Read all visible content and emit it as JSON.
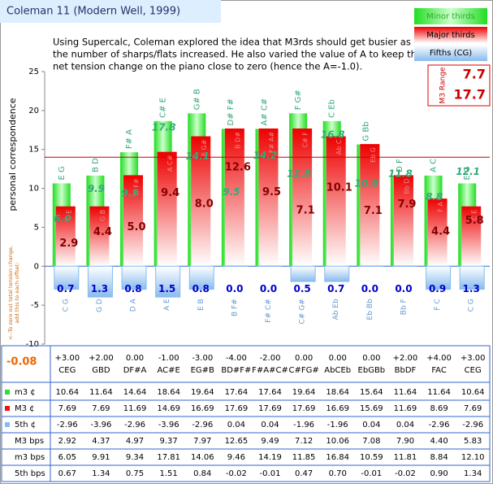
{
  "chart_data": {
    "type": "bar",
    "title": "Coleman 11 (Modern Well, 1999)",
    "description": [
      "Using Supercalc, Coleman explored the idea that M3rds should get busier as",
      "the number of sharps/flats increased. He also varied the value of A to keep the",
      "net tension change on the piano close to zero (hence the A=-1.0)."
    ],
    "y_label": "personal correspondence",
    "ylim": [
      -10,
      25
    ],
    "yticks": [
      -10,
      -5,
      0,
      5,
      10,
      15,
      20,
      25
    ],
    "hline": 14,
    "categories": [
      "CEG",
      "GBD",
      "DF#A",
      "AC#E",
      "EG#B",
      "BD#F#",
      "F#A#C#",
      "C#FG#",
      "AbCEb",
      "EbGBb",
      "BbDF",
      "FAC",
      "CEG"
    ],
    "offsets": {
      "values": [
        3,
        2,
        0,
        -1,
        -3,
        -4,
        -2,
        0,
        0,
        0,
        2,
        4,
        3
      ],
      "value_labels": [
        "+3.00",
        "+2.00",
        "0.00",
        "-1.00",
        "-3.00",
        "-4.00",
        "-2.00",
        "0.00",
        "0.00",
        "0.00",
        "+2.00",
        "+4.00",
        "+3.00"
      ]
    },
    "series": [
      {
        "name": "Minor thirds",
        "row_label": "m3 ¢",
        "color": "#33dd33",
        "values": [
          10.64,
          11.64,
          14.64,
          18.64,
          19.64,
          17.64,
          17.64,
          19.64,
          18.64,
          15.64,
          11.64,
          11.64,
          10.64
        ],
        "value_labels": [
          "10.64",
          "11.64",
          "14.64",
          "18.64",
          "19.64",
          "17.64",
          "17.64",
          "19.64",
          "18.64",
          "15.64",
          "11.64",
          "11.64",
          "10.64"
        ],
        "notes": [
          "E G",
          "B D",
          "F# A",
          "C# E",
          "G# B",
          "D# F#",
          "A# C#",
          "F G#",
          "C Eb",
          "G Bb",
          "D F",
          "A C",
          "E G"
        ]
      },
      {
        "name": "Major thirds",
        "row_label": "M3 ¢",
        "color": "#ee1111",
        "values": [
          7.69,
          7.69,
          11.69,
          14.69,
          16.69,
          17.69,
          17.69,
          17.69,
          16.69,
          15.69,
          11.69,
          8.69,
          7.69
        ],
        "value_labels": [
          "7.69",
          "7.69",
          "11.69",
          "14.69",
          "16.69",
          "17.69",
          "17.69",
          "17.69",
          "16.69",
          "15.69",
          "11.69",
          "8.69",
          "7.69"
        ],
        "notes": [
          "C E",
          "G B",
          "D F#",
          "A C#",
          "E G#",
          "B D#",
          "F# A#",
          "C# F",
          "Ab C",
          "Eb G",
          "Bb D",
          "F A",
          "C E"
        ]
      },
      {
        "name": "Fifths (CG)",
        "row_label": "5th ¢",
        "color": "#88bbee",
        "values": [
          -2.96,
          -3.96,
          -2.96,
          -3.96,
          -2.96,
          0.04,
          0.04,
          -1.96,
          -1.96,
          0.04,
          0.04,
          -2.96,
          -2.96
        ],
        "value_labels": [
          "-2.96",
          "-3.96",
          "-2.96",
          "-3.96",
          "-2.96",
          "0.04",
          "0.04",
          "-1.96",
          "-1.96",
          "0.04",
          "0.04",
          "-2.96",
          "-2.96"
        ],
        "notes": [
          "C G",
          "G D",
          "D A",
          "A E",
          "E B",
          "B F#",
          "F# C#",
          "C# G#",
          "Ab Eb",
          "Eb Bb",
          "Bb F",
          "F C",
          "C G"
        ]
      }
    ],
    "bps": [
      {
        "row_label": "M3 bps",
        "color": "#880000",
        "values": [
          2.92,
          4.37,
          4.97,
          9.37,
          7.97,
          12.65,
          9.49,
          7.12,
          10.06,
          7.08,
          7.9,
          4.4,
          5.83
        ],
        "value_labels": [
          "2.92",
          "4.37",
          "4.97",
          "9.37",
          "7.97",
          "12.65",
          "9.49",
          "7.12",
          "10.06",
          "7.08",
          "7.90",
          "4.40",
          "5.83"
        ],
        "point_labels": [
          "2.9",
          "4.4",
          "5.0",
          "9.4",
          "8.0",
          "12.6",
          "9.5",
          "7.1",
          "10.1",
          "7.1",
          "7.9",
          "4.4",
          "5.8"
        ]
      },
      {
        "row_label": "m3 bps",
        "color": "#33aa77",
        "values": [
          6.05,
          9.91,
          9.34,
          17.81,
          14.06,
          9.46,
          14.19,
          11.85,
          16.84,
          10.59,
          11.81,
          8.84,
          12.1
        ],
        "value_labels": [
          "6.05",
          "9.91",
          "9.34",
          "17.81",
          "14.06",
          "9.46",
          "14.19",
          "11.85",
          "16.84",
          "10.59",
          "11.81",
          "8.84",
          "12.10"
        ],
        "point_labels": [
          "6.0",
          "9.9",
          "9.3",
          "17.8",
          "14.1",
          "9.5",
          "14.2",
          "11.8",
          "16.8",
          "10.6",
          "11.8",
          "8.8",
          "12.1"
        ]
      },
      {
        "row_label": "5th bps",
        "color": "#0000cc",
        "values": [
          0.67,
          1.34,
          0.75,
          1.51,
          0.84,
          -0.02,
          -0.01,
          0.47,
          0.7,
          -0.01,
          -0.02,
          0.9,
          1.34
        ],
        "value_labels": [
          "0.67",
          "1.34",
          "0.75",
          "1.51",
          "0.84",
          "-0.02",
          "-0.01",
          "0.47",
          "0.70",
          "-0.01",
          "-0.02",
          "0.90",
          "1.34"
        ],
        "point_labels": [
          "0.7",
          "1.3",
          "0.8",
          "1.5",
          "0.8",
          "0.0",
          "0.0",
          "0.5",
          "0.7",
          "0.0",
          "0.0",
          "0.9",
          "1.3"
        ]
      }
    ],
    "range": {
      "label": "M3 Range",
      "values": [
        7.7,
        17.7
      ]
    },
    "tension_note": {
      "text": [
        "<--To zero out total tension change,",
        "add this to each offset:"
      ],
      "value": -0.08
    }
  }
}
